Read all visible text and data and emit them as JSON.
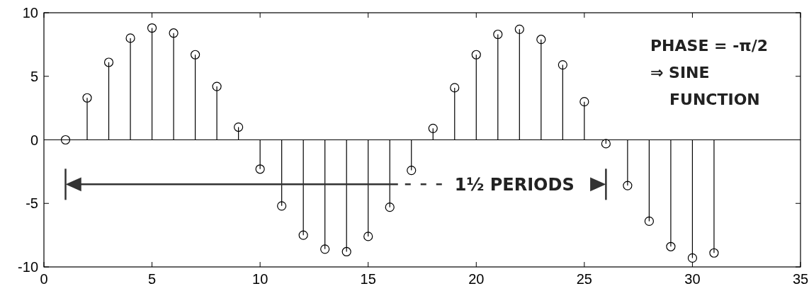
{
  "chart_data": {
    "type": "lollipop",
    "x": [
      1,
      2,
      3,
      4,
      5,
      6,
      7,
      8,
      9,
      10,
      11,
      12,
      13,
      14,
      15,
      16,
      17,
      18,
      19,
      20,
      21,
      22,
      23,
      24,
      25,
      26,
      27,
      28,
      29,
      30,
      31
    ],
    "values": [
      0,
      3.3,
      6.1,
      8.0,
      8.8,
      8.4,
      6.7,
      4.2,
      1.0,
      -2.3,
      -5.2,
      -7.5,
      -8.6,
      -8.8,
      -7.6,
      -5.3,
      -2.4,
      0.9,
      4.1,
      6.7,
      8.3,
      8.7,
      7.9,
      5.9,
      3.0,
      -0.3,
      -3.6,
      -6.4,
      -8.4,
      -9.3,
      -8.9
    ],
    "color": "#000000",
    "marker": "circle",
    "grid": false,
    "xlim": [
      0,
      35
    ],
    "xticks": [
      0,
      5,
      10,
      15,
      20,
      25,
      30,
      35
    ],
    "ylim": [
      -10,
      10
    ],
    "yticks": [
      -10,
      -5,
      0,
      5,
      10
    ],
    "ref_lines": [
      {
        "axis": "y",
        "value": 0
      }
    ],
    "annotations": [
      "PHASE = -π/2",
      "⇒ SINE",
      "FUNCTION",
      "1½ PERIODS"
    ]
  }
}
